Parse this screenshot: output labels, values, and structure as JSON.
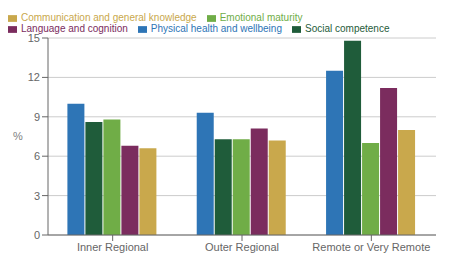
{
  "chart_data": {
    "type": "bar",
    "categories": [
      "Inner Regional",
      "Outer Regional",
      "Remote or Very Remote"
    ],
    "series": [
      {
        "name": "Physical health and wellbeing",
        "color": "#2E75B6",
        "values": [
          10.0,
          9.3,
          12.5
        ]
      },
      {
        "name": "Social competence",
        "color": "#1F5C3A",
        "values": [
          8.6,
          7.3,
          14.8
        ]
      },
      {
        "name": "Emotional maturity",
        "color": "#70AD47",
        "values": [
          8.8,
          7.3,
          7.0
        ]
      },
      {
        "name": "Language and cognition",
        "color": "#7B2C5E",
        "values": [
          6.8,
          8.1,
          11.2
        ]
      },
      {
        "name": "Communication and general knowledge",
        "color": "#C9A84C",
        "values": [
          6.6,
          7.2,
          8.0
        ]
      }
    ],
    "ylabel": "%",
    "ylim": [
      0,
      15
    ],
    "yticks": [
      0,
      3,
      6,
      9,
      12,
      15
    ],
    "grid": true,
    "legend": "upper left"
  }
}
